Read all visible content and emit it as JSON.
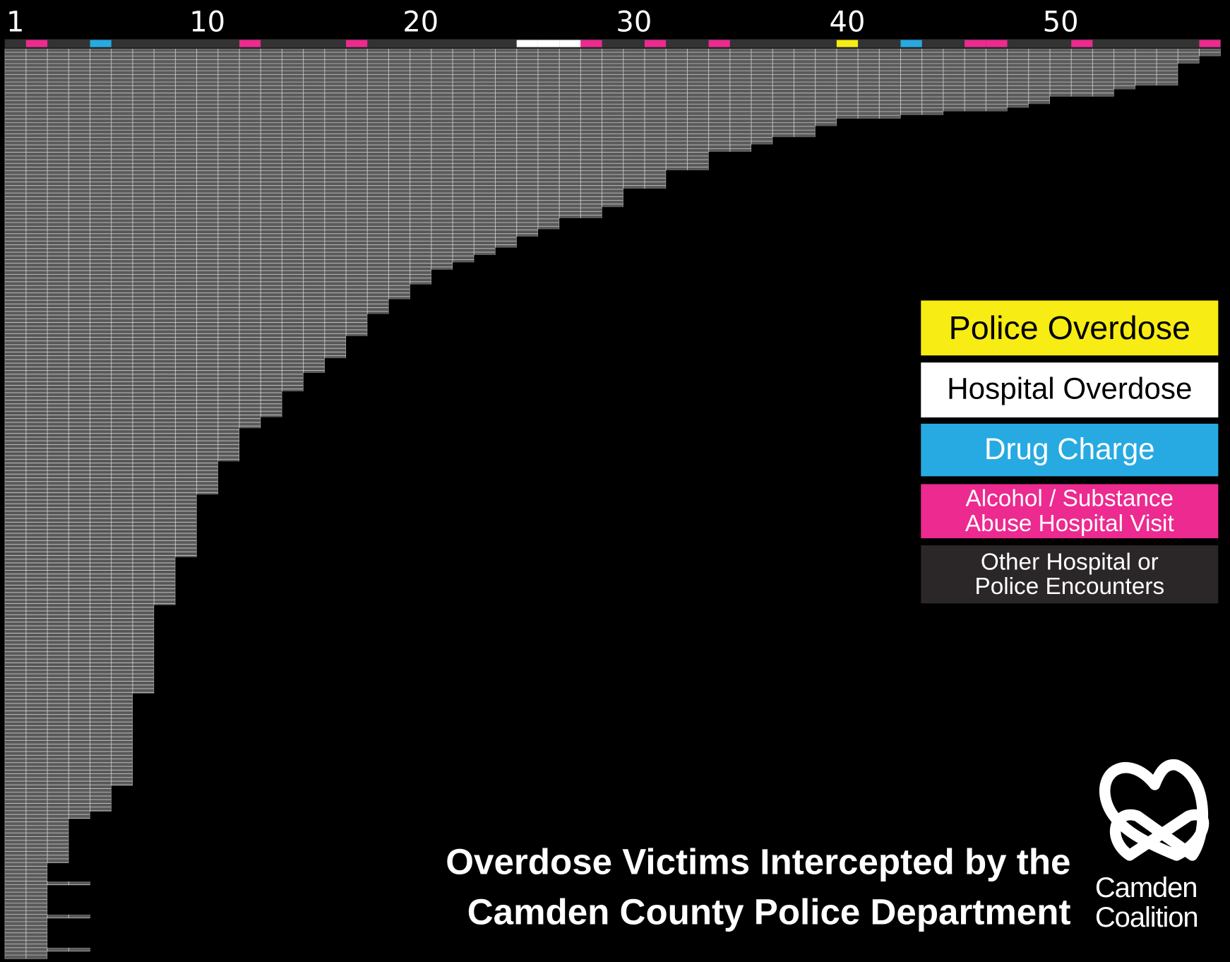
{
  "chart_data": {
    "type": "bar",
    "title": "Overdose Victims Intercepted by the Camden County Police Department",
    "logo_text": "Camden Coalition",
    "xlim": [
      0.5,
      57.5
    ],
    "xticks": [
      1,
      10,
      20,
      30,
      40,
      50
    ],
    "color": "#5a5a5a",
    "series": [
      {
        "name": "Police Overdose",
        "color": "#f7ec13",
        "encounters": [
          40
        ]
      },
      {
        "name": "Hospital Overdose",
        "color": "#ffffff",
        "encounters": [
          25,
          26,
          27
        ]
      },
      {
        "name": "Drug Charge",
        "color": "#27aae1",
        "encounters": [
          5,
          43
        ]
      },
      {
        "name": "Alcohol / Substance Abuse Hospital Visit",
        "color": "#ec2a8f",
        "encounters": [
          2,
          12,
          17,
          28,
          31,
          34,
          46,
          47,
          51,
          57
        ]
      },
      {
        "name": "Other Hospital or Police Encounters",
        "color": "#2b2728"
      }
    ],
    "values": [
      57,
      57,
      56,
      56,
      55,
      55,
      55,
      55,
      55,
      55,
      53,
      52,
      52,
      49,
      49,
      48,
      47,
      44,
      42,
      39,
      39,
      38,
      38,
      38,
      36,
      36,
      35,
      35,
      33,
      33,
      33,
      33,
      33,
      31,
      31,
      31,
      31,
      31,
      29,
      29,
      29,
      29,
      29,
      28,
      28,
      28,
      26,
      26,
      26,
      25,
      25,
      24,
      24,
      24,
      23,
      23,
      22,
      22,
      21,
      21,
      20,
      20,
      20,
      20,
      19,
      19,
      19,
      19,
      18,
      18,
      18,
      18,
      17,
      17,
      17,
      17,
      17,
      17,
      16,
      16,
      16,
      16,
      16,
      16,
      15,
      15,
      15,
      15,
      14,
      14,
      14,
      14,
      14,
      13,
      13,
      13,
      13,
      13,
      13,
      13,
      12,
      12,
      12,
      11,
      11,
      11,
      11,
      11,
      11,
      11,
      11,
      11,
      10,
      10,
      10,
      10,
      10,
      10,
      10,
      10,
      10,
      9,
      9,
      9,
      9,
      9,
      9,
      9,
      9,
      9,
      9,
      9,
      9,
      9,
      9,
      9,
      9,
      9,
      8,
      8,
      8,
      8,
      8,
      8,
      8,
      8,
      8,
      8,
      8,
      8,
      8,
      7,
      7,
      7,
      7,
      7,
      7,
      7,
      7,
      7,
      7,
      7,
      7,
      7,
      7,
      7,
      7,
      7,
      7,
      7,
      7,
      7,
      7,
      7,
      7,
      6,
      6,
      6,
      6,
      6,
      6,
      6,
      6,
      6,
      6,
      6,
      6,
      6,
      6,
      6,
      6,
      6,
      6,
      6,
      6,
      6,
      6,
      6,
      6,
      6,
      5,
      5,
      5,
      5,
      5,
      5,
      5,
      4,
      4,
      3,
      3,
      3,
      3,
      3,
      3,
      3,
      3,
      3,
      3,
      3,
      3,
      2,
      2,
      2,
      2,
      2,
      4,
      2,
      2,
      2,
      2,
      2,
      2,
      2,
      2,
      4,
      2,
      2,
      2,
      2,
      2,
      2,
      2,
      2,
      4,
      2,
      2
    ]
  }
}
